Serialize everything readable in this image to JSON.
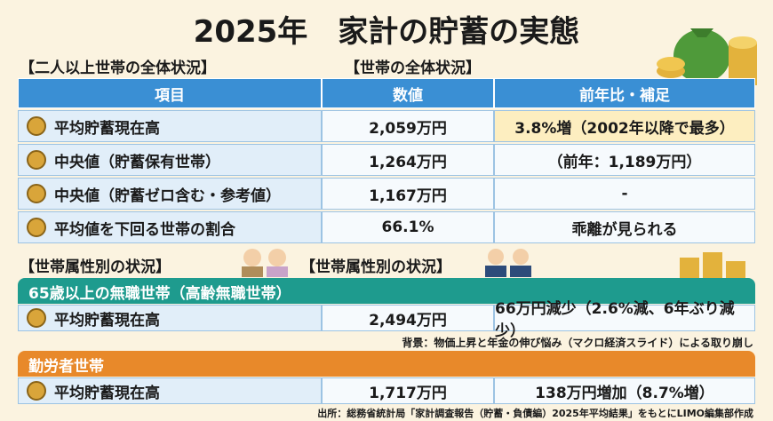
{
  "header": {
    "title": "2025年　家計の貯蓄の実態"
  },
  "section1": {
    "label_left": "【二人以上世帯の全体状況】",
    "label_right": "【世帯の全体状況】"
  },
  "table": {
    "columns": [
      "項目",
      "数値",
      "前年比・補足"
    ],
    "rows": [
      [
        "平均貯蓄現在高",
        "2,059万円",
        "3.8%増（2002年以降で最多）"
      ],
      [
        "中央値（貯蓄保有世帯）",
        "1,264万円",
        "（前年：1,189万円）"
      ],
      [
        "中央値（貯蓄ゼロ含む・参考値）",
        "1,167万円",
        "-"
      ],
      [
        "平均値を下回る世帯の割合",
        "66.1%",
        "乖離が見られる"
      ]
    ]
  },
  "section2": {
    "label_left": "【世帯属性別の状況】",
    "label_right": "【世帯属性別の状況】"
  },
  "groups": [
    {
      "title": "65歳以上の無職世帯（高齢無職世帯）",
      "rows": [
        [
          "平均貯蓄現在高",
          "2,494万円",
          "66万円減少（2.6%減、6年ぶり減少）"
        ]
      ],
      "note": "背景：物価上昇と年金の伸び悩み（マクロ経済スライド）による取り崩し"
    },
    {
      "title": "勤労者世帯",
      "rows": [
        [
          "平均貯蓄現在高",
          "1,717万円",
          "138万円増加（8.7%増）"
        ]
      ]
    }
  ],
  "footer": {
    "source": "出所：総務省統計局「家計調査報告（貯蓄・負債編）2025年平均結果」をもとにLIMO編集部作成"
  }
}
